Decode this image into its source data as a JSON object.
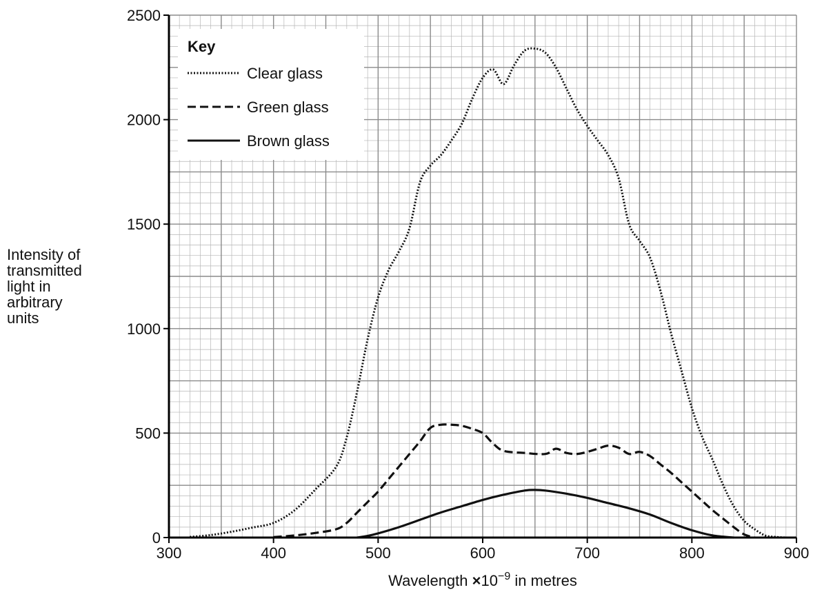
{
  "chart_data": {
    "type": "line",
    "xlabel_parts": {
      "prefix": "Wavelength ",
      "times": "×",
      "base": "10",
      "exp": "−9",
      "suffix": " in metres"
    },
    "ylabel_lines": [
      "Intensity of",
      "transmitted",
      "light in",
      "arbitrary",
      "units"
    ],
    "xlim": [
      300,
      900
    ],
    "ylim": [
      0,
      2500
    ],
    "x_ticks": [
      300,
      400,
      500,
      600,
      700,
      800,
      900
    ],
    "y_ticks": [
      0,
      500,
      1000,
      1500,
      2000,
      2500
    ],
    "grid": true,
    "legend_title": "Key",
    "legend_position": "top-left",
    "series": [
      {
        "name": "Clear glass",
        "style": "dotted",
        "x": [
          320,
          340,
          360,
          380,
          400,
          420,
          440,
          460,
          470,
          480,
          490,
          500,
          510,
          520,
          530,
          540,
          550,
          560,
          570,
          580,
          590,
          600,
          610,
          620,
          630,
          640,
          650,
          660,
          670,
          680,
          690,
          700,
          710,
          720,
          730,
          740,
          750,
          760,
          770,
          780,
          790,
          800,
          810,
          820,
          830,
          840,
          850,
          860,
          870,
          880,
          890
        ],
        "y": [
          3,
          12,
          28,
          48,
          70,
          130,
          230,
          340,
          480,
          700,
          950,
          1150,
          1280,
          1370,
          1480,
          1700,
          1780,
          1830,
          1900,
          1980,
          2100,
          2200,
          2240,
          2170,
          2260,
          2330,
          2340,
          2320,
          2250,
          2150,
          2050,
          1970,
          1900,
          1830,
          1720,
          1500,
          1420,
          1340,
          1180,
          980,
          800,
          620,
          480,
          370,
          250,
          150,
          80,
          40,
          10,
          3,
          0
        ]
      },
      {
        "name": "Green glass",
        "style": "dashed",
        "x": [
          400,
          420,
          440,
          460,
          470,
          480,
          490,
          500,
          510,
          520,
          530,
          540,
          550,
          560,
          570,
          580,
          590,
          600,
          610,
          620,
          640,
          660,
          670,
          680,
          690,
          700,
          710,
          720,
          730,
          740,
          750,
          760,
          770,
          780,
          790,
          800,
          810,
          820,
          830,
          840,
          850,
          860
        ],
        "y": [
          2,
          10,
          22,
          40,
          70,
          120,
          170,
          220,
          280,
          340,
          400,
          460,
          525,
          540,
          540,
          535,
          520,
          500,
          450,
          415,
          405,
          400,
          425,
          405,
          400,
          410,
          425,
          440,
          430,
          400,
          410,
          390,
          350,
          310,
          265,
          220,
          175,
          130,
          90,
          50,
          15,
          0
        ]
      },
      {
        "name": "Brown glass",
        "style": "solid",
        "x": [
          480,
          490,
          500,
          520,
          540,
          560,
          580,
          600,
          620,
          640,
          650,
          660,
          680,
          700,
          720,
          740,
          760,
          780,
          800,
          820,
          840
        ],
        "y": [
          0,
          8,
          20,
          50,
          85,
          120,
          150,
          180,
          205,
          225,
          228,
          225,
          210,
          190,
          165,
          140,
          110,
          70,
          35,
          10,
          0
        ]
      }
    ]
  }
}
